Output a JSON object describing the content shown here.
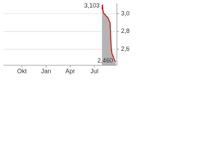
{
  "chart_data": {
    "type": "line",
    "x": [
      9.95,
      10.0,
      10.1,
      10.2,
      10.35,
      10.5,
      10.65,
      10.8,
      10.95,
      11.1,
      11.2,
      11.35,
      11.5,
      11.65
    ],
    "series": [
      {
        "color": "#d40000",
        "fill": "#b4b4b4",
        "values": [
          3.05,
          3.103,
          3.02,
          3.0,
          2.99,
          2.97,
          2.96,
          2.93,
          2.9,
          2.62,
          2.55,
          2.52,
          2.48,
          2.46
        ]
      }
    ],
    "xlim": [
      -2.3,
      11.8
    ],
    "xticks": [
      {
        "value": 0,
        "label": "Okt"
      },
      {
        "value": 3,
        "label": "Jan"
      },
      {
        "value": 6,
        "label": "Apr"
      },
      {
        "value": 9,
        "label": "Jul"
      }
    ],
    "ylim": [
      2.42,
      3.115
    ],
    "yticks": [
      {
        "value": 2.6,
        "label": "2,6"
      },
      {
        "value": 2.8,
        "label": "2,8"
      },
      {
        "value": 3.0,
        "label": "3,0"
      }
    ],
    "grid": true,
    "annotations": [
      "3,103",
      "2,460"
    ]
  }
}
